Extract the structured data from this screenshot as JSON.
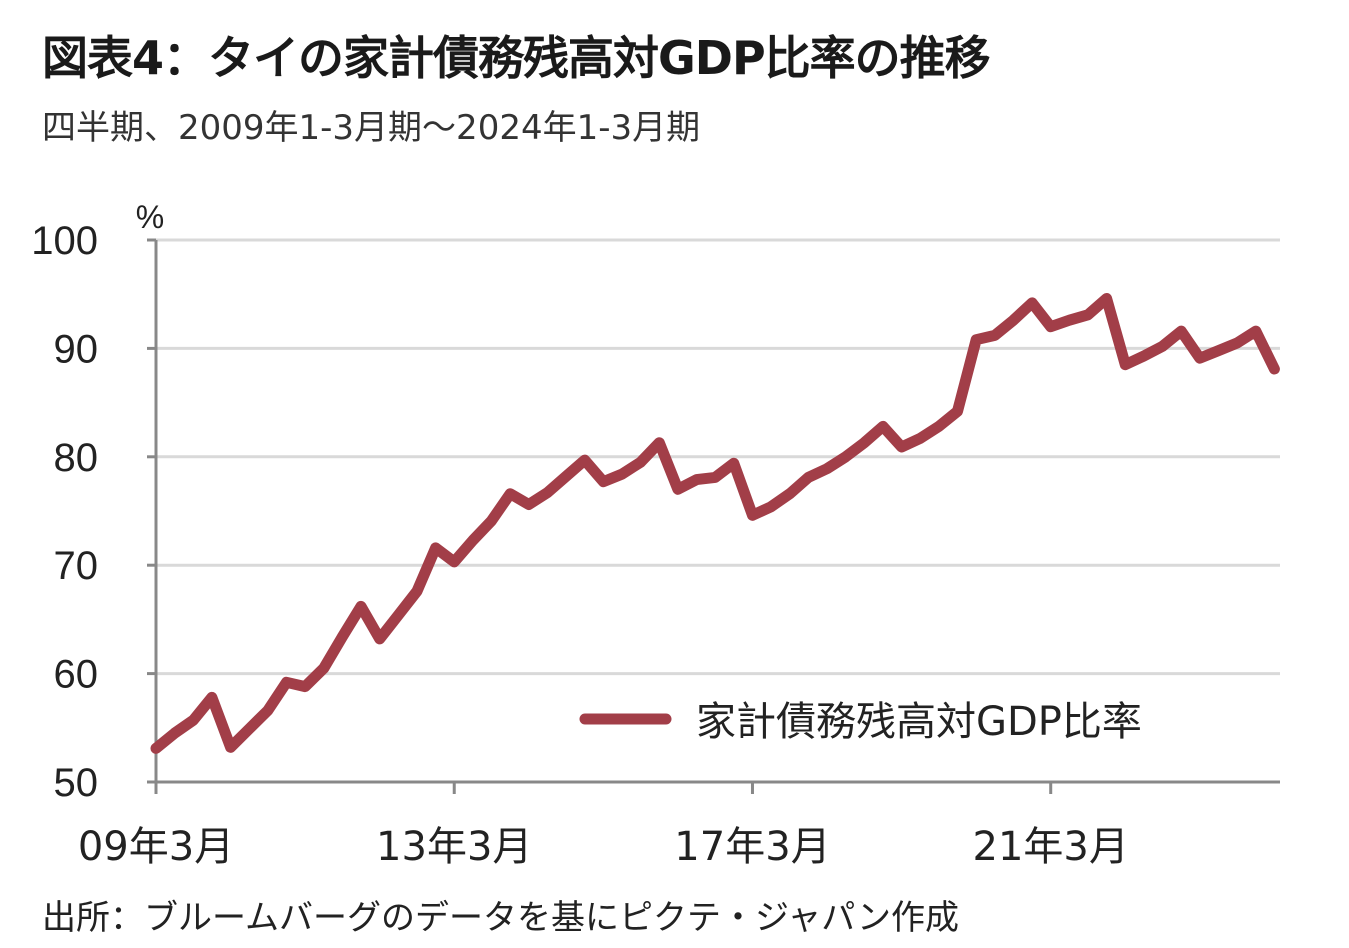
{
  "title": "図表4：タイの家計債務残高対GDP比率の推移",
  "subtitle": "四半期、2009年1-3月期～2024年1-3月期",
  "source": "出所：ブルームバーグのデータを基にピクテ・ジャパン作成",
  "chart_data": {
    "type": "line",
    "title": "図表4：タイの家計債務残高対GDP比率の推移",
    "ylabel": "%",
    "ylim": [
      50,
      100
    ],
    "yticks": [
      50,
      60,
      70,
      80,
      90,
      100
    ],
    "xtick_labels": [
      {
        "index": 0,
        "label": "09年3月"
      },
      {
        "index": 16,
        "label": "13年3月"
      },
      {
        "index": 32,
        "label": "17年3月"
      },
      {
        "index": 48,
        "label": "21年3月"
      }
    ],
    "grid": true,
    "legend_position": "bottom-right",
    "colors": {
      "line": "#a23e48",
      "grid": "#d9d9d9",
      "axis": "#888888"
    },
    "series": [
      {
        "name": "家計債務残高対GDP比率",
        "start": "2009年1-3月期",
        "end": "2024年1-3月期",
        "frequency": "quarterly",
        "values": [
          53.1,
          54.5,
          55.7,
          57.8,
          53.2,
          54.9,
          56.6,
          59.2,
          58.8,
          60.5,
          63.4,
          66.2,
          63.2,
          65.4,
          67.6,
          71.6,
          70.3,
          72.3,
          74.1,
          76.6,
          75.6,
          76.7,
          78.2,
          79.7,
          77.7,
          78.4,
          79.5,
          81.3,
          77.0,
          77.9,
          78.1,
          79.4,
          74.6,
          75.4,
          76.6,
          78.1,
          78.9,
          80.0,
          81.3,
          82.8,
          80.9,
          81.7,
          82.8,
          84.2,
          90.8,
          91.2,
          92.6,
          94.2,
          92.0,
          92.6,
          93.1,
          94.6,
          88.5,
          89.3,
          90.2,
          91.6,
          89.1,
          89.8,
          90.5,
          91.6,
          88.1
        ]
      }
    ]
  }
}
